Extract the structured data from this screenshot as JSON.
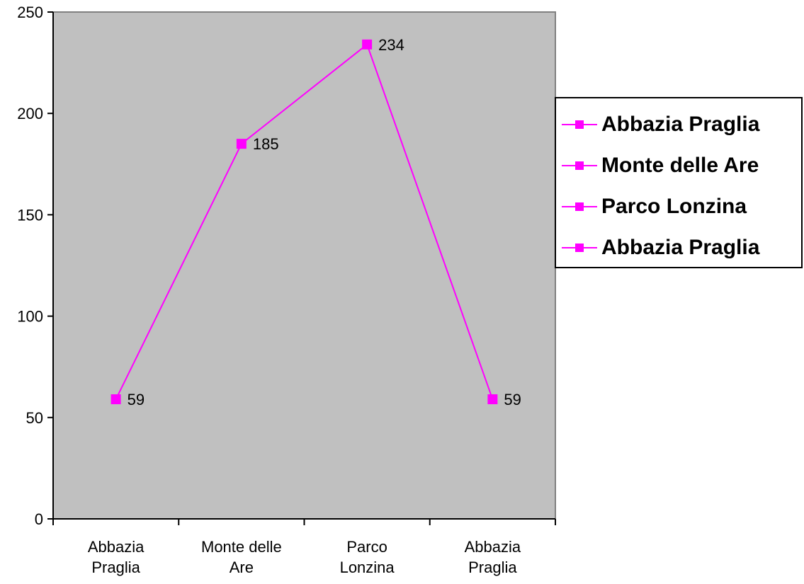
{
  "colors": {
    "series": "#ff00ff",
    "plot_background": "#c0c0c0",
    "axis": "#000000"
  },
  "chart_data": {
    "type": "line",
    "categories": [
      "Abbazia Praglia",
      "Monte delle Are",
      "Parco Lonzina",
      "Abbazia Praglia"
    ],
    "category_lines": [
      [
        "Abbazia",
        "Praglia"
      ],
      [
        "Monte delle",
        "Are"
      ],
      [
        "Parco",
        "Lonzina"
      ],
      [
        "Abbazia",
        "Praglia"
      ]
    ],
    "series": [
      {
        "values": [
          59,
          185,
          234,
          59
        ]
      }
    ],
    "data_labels": [
      "59",
      "185",
      "234",
      "59"
    ],
    "ylim": [
      0,
      250
    ],
    "yticks": [
      0,
      50,
      100,
      150,
      200,
      250
    ],
    "grid": false,
    "legend": {
      "placement": "right",
      "entries": [
        "Abbazia Praglia",
        "Monte delle Are",
        "Parco Lonzina",
        "Abbazia Praglia"
      ]
    }
  }
}
